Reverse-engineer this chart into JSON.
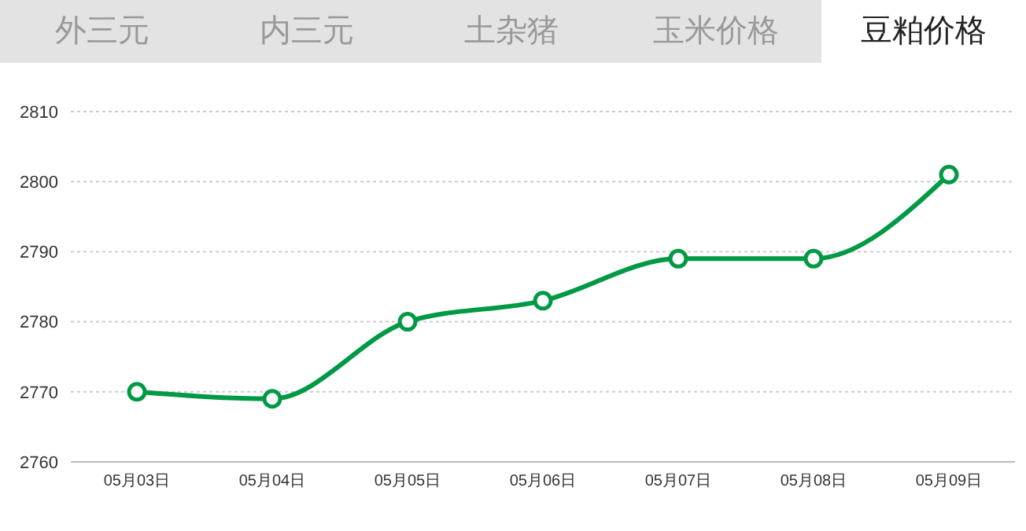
{
  "chart_data": {
    "type": "line",
    "title": "豆粕价格",
    "annotations": [
      "外三元",
      "内三元",
      "土杂猪",
      "玉米价格"
    ],
    "categories": [
      "05月03日",
      "05月04日",
      "05月05日",
      "05月06日",
      "05月07日",
      "05月08日",
      "05月09日"
    ],
    "series": [
      {
        "color": "#009944",
        "values": [
          2770,
          2769,
          2780,
          2783,
          2789,
          2789,
          2801
        ]
      }
    ],
    "ylim": [
      2760,
      2810
    ],
    "yticks": [
      2760,
      2770,
      2780,
      2790,
      2800,
      2810
    ],
    "grid": "y",
    "marker": "circle",
    "line_style": "solid"
  }
}
